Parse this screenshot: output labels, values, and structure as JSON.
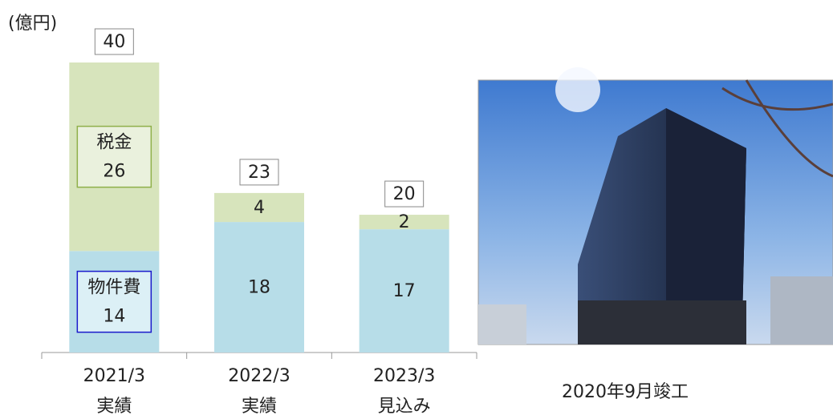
{
  "chart_data": {
    "type": "stacked_bar",
    "unit_label": "(億円)",
    "categories": [
      "2021/3",
      "2022/3",
      "2023/3"
    ],
    "category_sublabels": [
      "実績",
      "実績",
      "見込み"
    ],
    "series": [
      {
        "name": "物件費",
        "color": "#b7dde8",
        "values": [
          14,
          18,
          17
        ]
      },
      {
        "name": "税金",
        "color": "#d7e4bc",
        "values": [
          26,
          4,
          2
        ]
      }
    ],
    "totals": [
      40,
      23,
      20
    ],
    "ylim": [
      0,
      40
    ],
    "photo_caption": "2020年9月竣工"
  }
}
